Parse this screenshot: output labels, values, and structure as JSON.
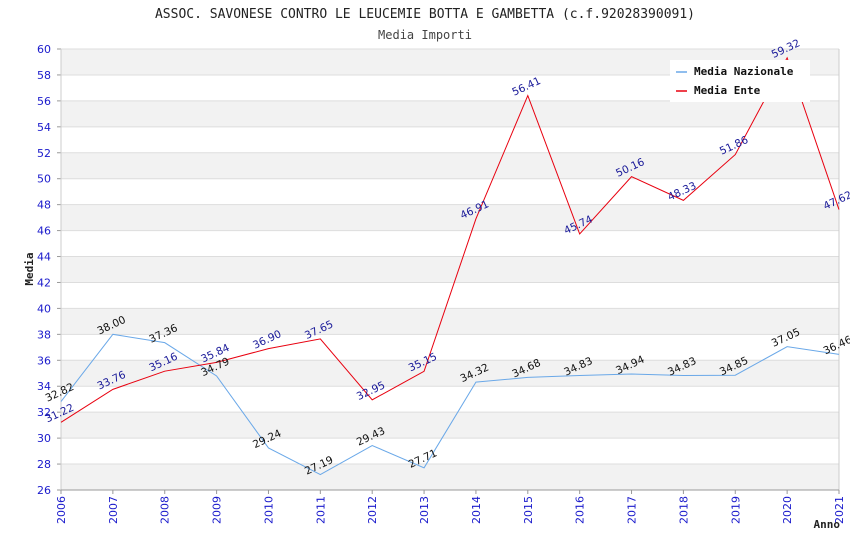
{
  "chart_data": {
    "type": "line",
    "title": "ASSOC. SAVONESE CONTRO LE LEUCEMIE BOTTA E GAMBETTA (c.f.92028390091)",
    "subtitle": "Media Importi",
    "xlabel": "Anno",
    "ylabel": "Media",
    "ylim": [
      26,
      60
    ],
    "yticks": [
      26,
      28,
      30,
      32,
      34,
      36,
      38,
      40,
      42,
      44,
      46,
      48,
      50,
      52,
      54,
      56,
      58,
      60
    ],
    "x": [
      "2006",
      "2007",
      "2008",
      "2009",
      "2010",
      "2011",
      "2012",
      "2013",
      "2014",
      "2015",
      "2016",
      "2017",
      "2018",
      "2019",
      "2020",
      "2021"
    ],
    "grid": true,
    "legend_position": "top-right",
    "series": [
      {
        "name": "Media Nazionale",
        "color": "#6aa8e8",
        "values": [
          32.82,
          38.0,
          37.36,
          34.79,
          29.24,
          27.19,
          29.43,
          27.71,
          34.32,
          34.68,
          34.83,
          34.94,
          34.83,
          34.85,
          37.05,
          36.46
        ],
        "labels": [
          "32.82",
          "38.00",
          "37.36",
          "34.79",
          "29.24",
          "27.19",
          "29.43",
          "27.71",
          "34.32",
          "34.68",
          "34.83",
          "34.94",
          "34.83",
          "34.85",
          "37.05",
          "36.46"
        ]
      },
      {
        "name": "Media Ente",
        "color": "#e8000f",
        "values": [
          31.22,
          33.76,
          35.16,
          35.84,
          36.9,
          37.65,
          32.95,
          35.15,
          46.91,
          56.41,
          45.74,
          50.16,
          48.33,
          51.86,
          59.32,
          47.62
        ],
        "labels": [
          "31.22",
          "33.76",
          "35.16",
          "35.84",
          "36.90",
          "37.65",
          "32.95",
          "35.15",
          "46.91",
          "56.41",
          "45.74",
          "50.16",
          "48.33",
          "51.86",
          "59.32",
          "47.62"
        ]
      }
    ]
  }
}
